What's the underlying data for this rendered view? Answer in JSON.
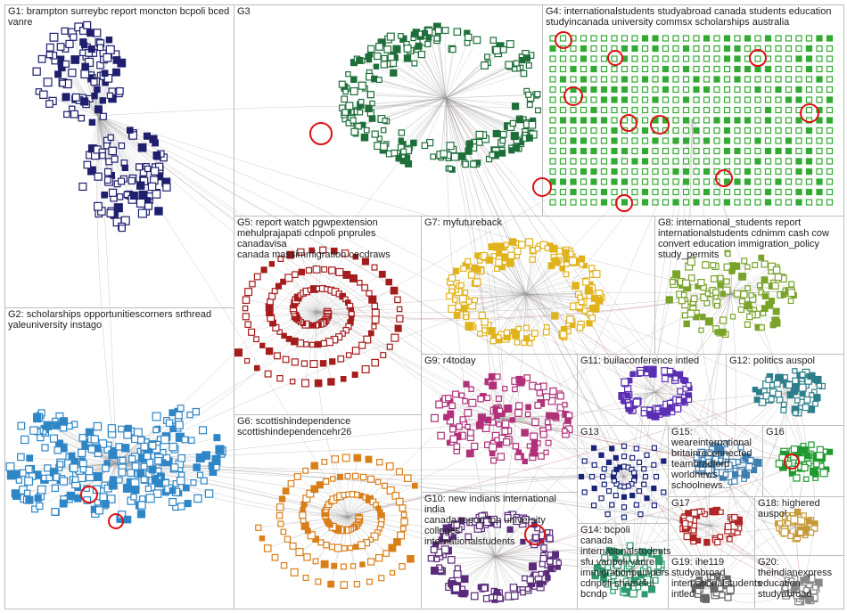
{
  "colors": {
    "G1": "#1f1f6e",
    "G2": "#2f86c6",
    "G3": "#1e6e3a",
    "G4": "#33aa33",
    "G5": "#a51c1c",
    "G6": "#d97f1a",
    "G7": "#e0b21c",
    "G8": "#7aa32a",
    "G9": "#b0307a",
    "G10": "#5a2a7a",
    "G11": "#5b2fb3",
    "G12": "#2c7f8a",
    "G13": "#1a237a",
    "G14": "#2e9a6e",
    "G15": "#3f7fb0",
    "G16": "#1f9a2f",
    "G17": "#b02525",
    "G18": "#c49a3a",
    "G19": "#666666",
    "G20": "#888888",
    "edge": "#9a9a9a",
    "frame": "#bdbdbd",
    "highlight": "#dd1111"
  },
  "groups": [
    {
      "id": "G1",
      "label": "G1: brampton surreybc report moncton bcpoli bced\nvanre"
    },
    {
      "id": "G2",
      "label": "G2: scholarships opportunitiescorners srthread\nyaleuniversity instago"
    },
    {
      "id": "G3",
      "label": "G3"
    },
    {
      "id": "G4",
      "label": "G4: internationalstudents studyabroad canada students education\nstudyincanada university commsx scholarships australia"
    },
    {
      "id": "G5",
      "label": "G5: report watch pgwpextension\nmehulprajapati cdnpoli pnprules canadavisa\ncanada massimmigration cecdraws"
    },
    {
      "id": "G6",
      "label": "G6: scottishindependence\nscottishindependencehr26"
    },
    {
      "id": "G7",
      "label": "G7: myfutureback"
    },
    {
      "id": "G8",
      "label": "G8: international_students report\ninternationalstudents cdnimm cash cow\nconvert education immigration_policy\nstudy_permits"
    },
    {
      "id": "G9",
      "label": "G9: r4today"
    },
    {
      "id": "G10",
      "label": "G10: new indians international india\ncanada report top university colleges\ninternationalstudents"
    },
    {
      "id": "G11",
      "label": "G11: builaconference intled"
    },
    {
      "id": "G12",
      "label": "G12: politics auspol"
    },
    {
      "id": "G13",
      "label": "G13"
    },
    {
      "id": "G14",
      "label": "G14: bcpoli canada\ninternationalstudents\nsfu vanpoli vanre\nimmigrationpumpers\ncdnpoli shameful\nbcndp"
    },
    {
      "id": "G15",
      "label": "G15:\nweareinternational\nbritainreconnected\nteambradford\nworldnews\nschoolnews..."
    },
    {
      "id": "G16",
      "label": "G16"
    },
    {
      "id": "G17",
      "label": "G17"
    },
    {
      "id": "G18",
      "label": "G18: highered\nauspol"
    },
    {
      "id": "G19",
      "label": "G19: ihe119\nstudyabroad\ninternationalstudents\nintled"
    },
    {
      "id": "G20",
      "label": "G20:\ntheindianexpress\neducation\nstudyabroad"
    }
  ]
}
